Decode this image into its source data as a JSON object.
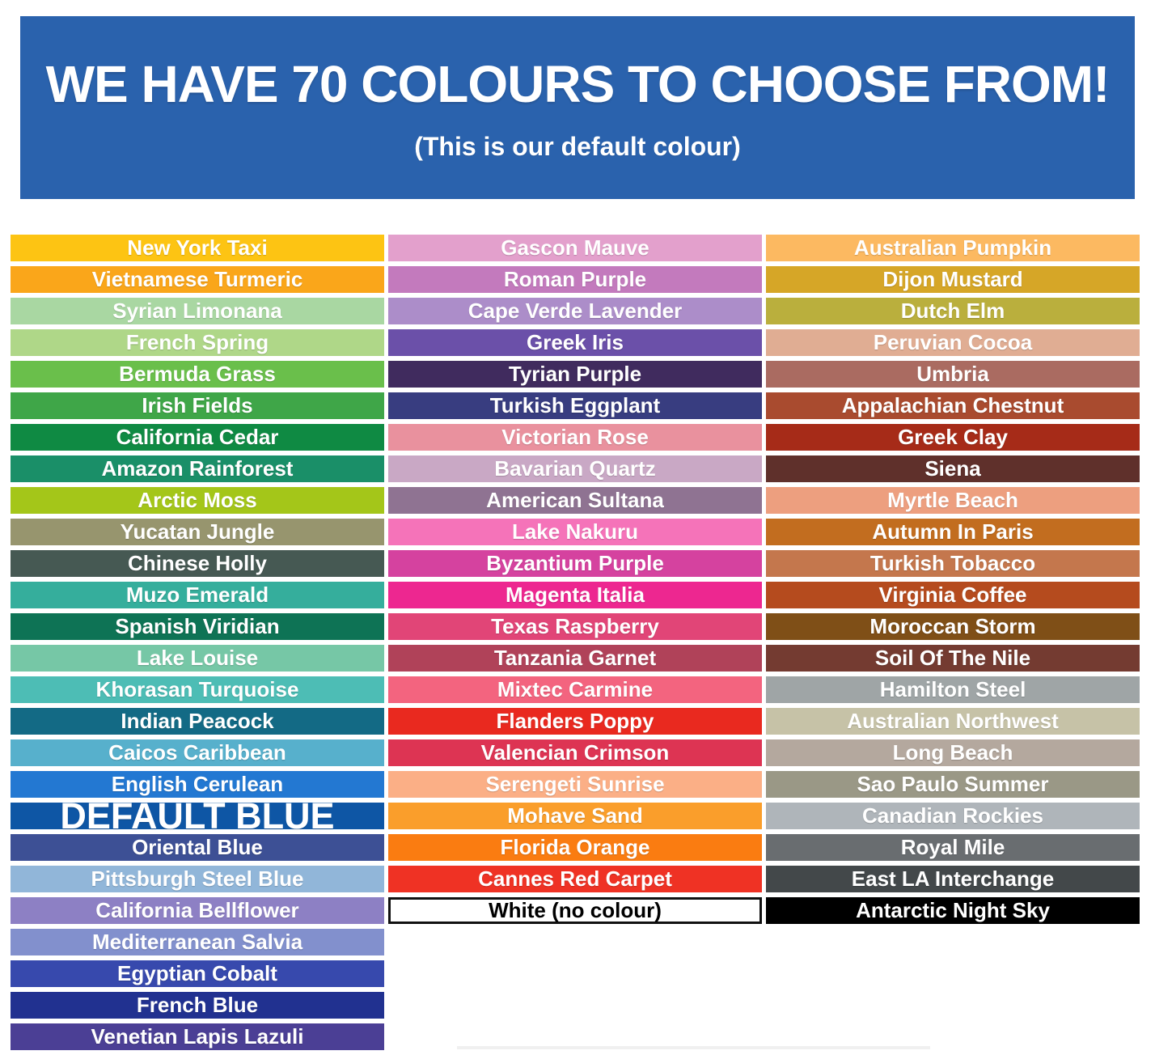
{
  "header": {
    "title": "WE HAVE 70 COLOURS TO CHOOSE FROM!",
    "subtitle": "(This is our default colour)",
    "background": "#2A62AD"
  },
  "columns": [
    {
      "swatches": [
        {
          "name": "New York Taxi",
          "color": "#FDC413"
        },
        {
          "name": "Vietnamese Turmeric",
          "color": "#FAA61A"
        },
        {
          "name": "Syrian Limonana",
          "color": "#A9D7A2"
        },
        {
          "name": "French Spring",
          "color": "#AFD788"
        },
        {
          "name": "Bermuda Grass",
          "color": "#6ABF4B"
        },
        {
          "name": "Irish Fields",
          "color": "#3FA648"
        },
        {
          "name": "California Cedar",
          "color": "#0F8A43"
        },
        {
          "name": "Amazon Rainforest",
          "color": "#1A8F68"
        },
        {
          "name": "Arctic Moss",
          "color": "#A4C619"
        },
        {
          "name": "Yucatan Jungle",
          "color": "#97956E"
        },
        {
          "name": "Chinese Holly",
          "color": "#465953"
        },
        {
          "name": "Muzo Emerald",
          "color": "#35AE9C"
        },
        {
          "name": "Spanish Viridian",
          "color": "#0E7355"
        },
        {
          "name": "Lake Louise",
          "color": "#76C7A6"
        },
        {
          "name": "Khorasan Turquoise",
          "color": "#4DBDB5"
        },
        {
          "name": "Indian Peacock",
          "color": "#136A85"
        },
        {
          "name": "Caicos Caribbean",
          "color": "#57B0CC"
        },
        {
          "name": "English Cerulean",
          "color": "#2378D2"
        },
        {
          "name": "DEFAULT BLUE",
          "color": "#0E56A5",
          "large": true
        },
        {
          "name": "Oriental Blue",
          "color": "#3D5095"
        },
        {
          "name": "Pittsburgh Steel Blue",
          "color": "#91B6D9"
        },
        {
          "name": "California Bellflower",
          "color": "#8D80C4"
        },
        {
          "name": "Mediterranean Salvia",
          "color": "#8290CD"
        },
        {
          "name": "Egyptian Cobalt",
          "color": "#3749AD"
        },
        {
          "name": "French Blue",
          "color": "#213190"
        },
        {
          "name": "Venetian Lapis Lazuli",
          "color": "#4B3F95"
        }
      ]
    },
    {
      "swatches": [
        {
          "name": "Gascon Mauve",
          "color": "#E3A0CC"
        },
        {
          "name": "Roman Purple",
          "color": "#C37ABD"
        },
        {
          "name": "Cape Verde Lavender",
          "color": "#AC8DC9"
        },
        {
          "name": "Greek Iris",
          "color": "#6B50A9"
        },
        {
          "name": "Tyrian Purple",
          "color": "#402B5E"
        },
        {
          "name": "Turkish Eggplant",
          "color": "#383D80"
        },
        {
          "name": "Victorian Rose",
          "color": "#E9919E"
        },
        {
          "name": "Bavarian Quartz",
          "color": "#C9A8C5"
        },
        {
          "name": "American Sultana",
          "color": "#8F7392"
        },
        {
          "name": "Lake Nakuru",
          "color": "#F573B9"
        },
        {
          "name": "Byzantium Purple",
          "color": "#D5429F"
        },
        {
          "name": "Magenta Italia",
          "color": "#ED2790"
        },
        {
          "name": "Texas Raspberry",
          "color": "#E14577"
        },
        {
          "name": "Tanzania Garnet",
          "color": "#B04259"
        },
        {
          "name": "Mixtec Carmine",
          "color": "#F3647F"
        },
        {
          "name": "Flanders Poppy",
          "color": "#E9291F"
        },
        {
          "name": "Valencian Crimson",
          "color": "#DD3453"
        },
        {
          "name": "Serengeti Sunrise",
          "color": "#FBAF86"
        },
        {
          "name": "Mohave Sand",
          "color": "#FA9E2B"
        },
        {
          "name": "Florida Orange",
          "color": "#FA7C11"
        },
        {
          "name": "Cannes Red Carpet",
          "color": "#EF3224"
        },
        {
          "name": "White (no colour)",
          "color": "#FFFFFF",
          "text": "#000000",
          "border": "#111111"
        }
      ]
    },
    {
      "swatches": [
        {
          "name": "Australian Pumpkin",
          "color": "#FCB961"
        },
        {
          "name": "Dijon Mustard",
          "color": "#D6A627"
        },
        {
          "name": "Dutch Elm",
          "color": "#BAAF3D"
        },
        {
          "name": "Peruvian Cocoa",
          "color": "#E0AD93"
        },
        {
          "name": "Umbria",
          "color": "#AA6B61"
        },
        {
          "name": "Appalachian Chestnut",
          "color": "#A94B2F"
        },
        {
          "name": "Greek Clay",
          "color": "#A62B18"
        },
        {
          "name": "Siena",
          "color": "#5F302B"
        },
        {
          "name": "Myrtle Beach",
          "color": "#ED9F7F"
        },
        {
          "name": "Autumn In Paris",
          "color": "#C26D1F"
        },
        {
          "name": "Turkish Tobacco",
          "color": "#C4774D"
        },
        {
          "name": "Virginia Coffee",
          "color": "#B54B1E"
        },
        {
          "name": "Moroccan Storm",
          "color": "#7F4F17"
        },
        {
          "name": "Soil Of The Nile",
          "color": "#743B31"
        },
        {
          "name": "Hamilton Steel",
          "color": "#9FA5A6"
        },
        {
          "name": "Australian Northwest",
          "color": "#C6C2A7"
        },
        {
          "name": "Long Beach",
          "color": "#B4A89E"
        },
        {
          "name": "Sao Paulo Summer",
          "color": "#9A9886"
        },
        {
          "name": "Canadian Rockies",
          "color": "#AFB5BA"
        },
        {
          "name": "Royal Mile",
          "color": "#696D70"
        },
        {
          "name": "East LA Interchange",
          "color": "#43484A"
        },
        {
          "name": "Antarctic Night Sky",
          "color": "#000000"
        }
      ]
    }
  ]
}
